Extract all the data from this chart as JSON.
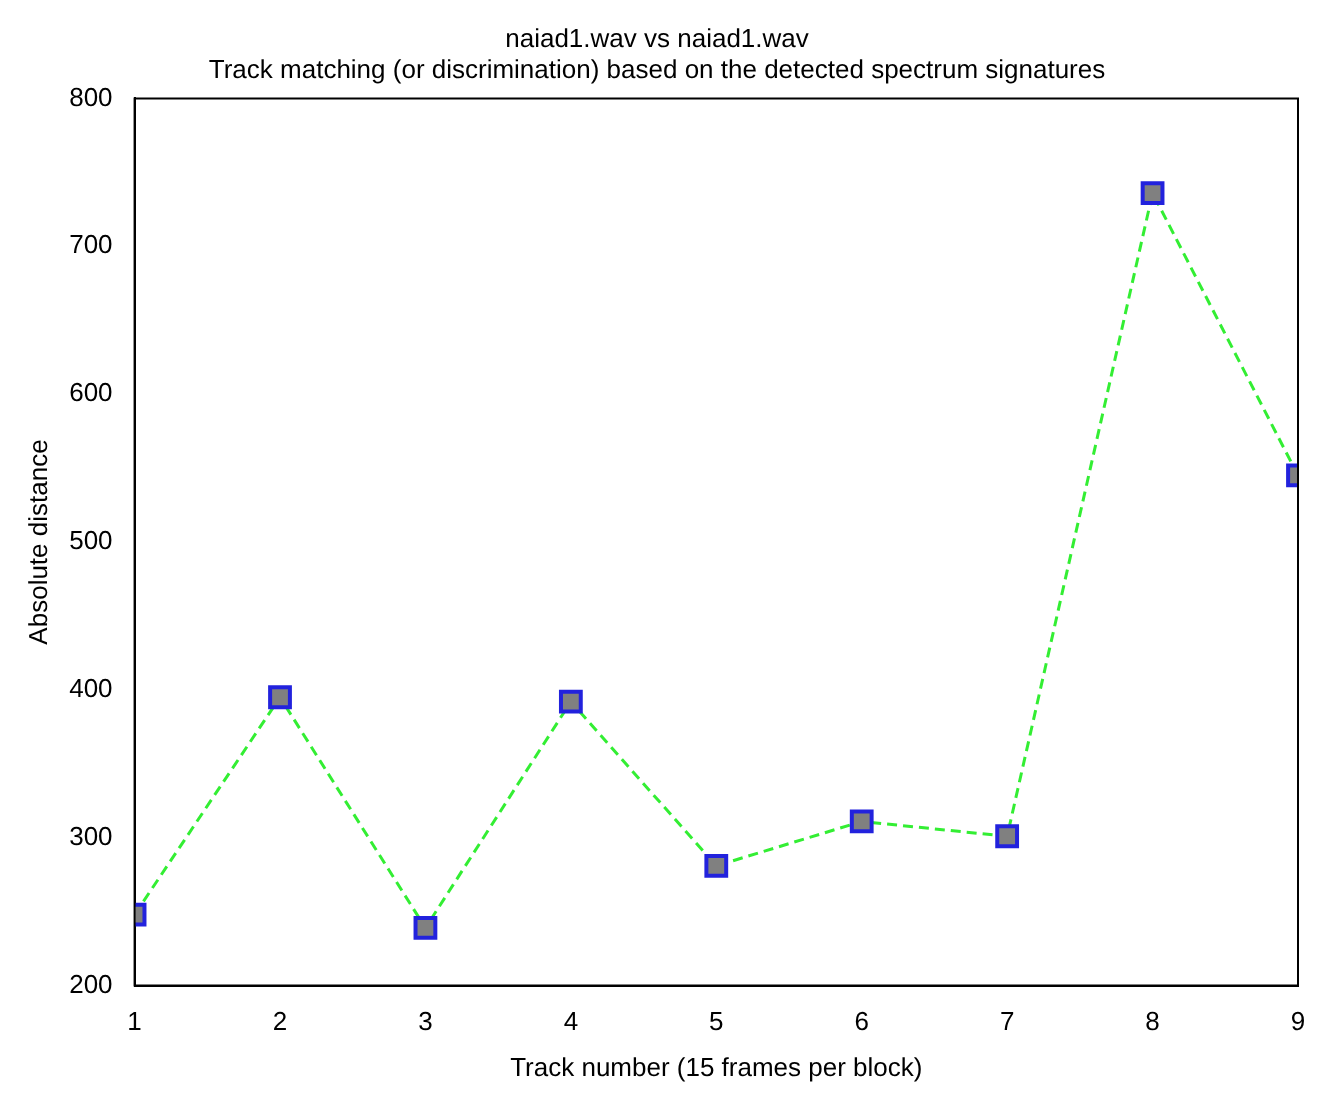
{
  "chart_data": {
    "type": "line",
    "title": "naiad1.wav vs naiad1.wav",
    "subtitle": "Track matching (or discrimination) based on the detected spectrum signatures",
    "xlabel": "Track number (15 frames per block)",
    "ylabel": "Absolute distance",
    "x": [
      1,
      2,
      3,
      4,
      5,
      6,
      7,
      8,
      9
    ],
    "series": [
      {
        "color": "#33ee33",
        "values": [
          248,
          395,
          239,
          392,
          281,
          311,
          301,
          736,
          545
        ]
      }
    ],
    "xlim": [
      1,
      9
    ],
    "xticks": [
      1,
      2,
      3,
      4,
      5,
      6,
      7,
      8,
      9
    ],
    "ylim": [
      200,
      800
    ],
    "yticks": [
      200,
      300,
      400,
      500,
      600,
      700,
      800
    ],
    "grid": false,
    "legend": false,
    "marker": "square",
    "line_style": "dashed"
  }
}
